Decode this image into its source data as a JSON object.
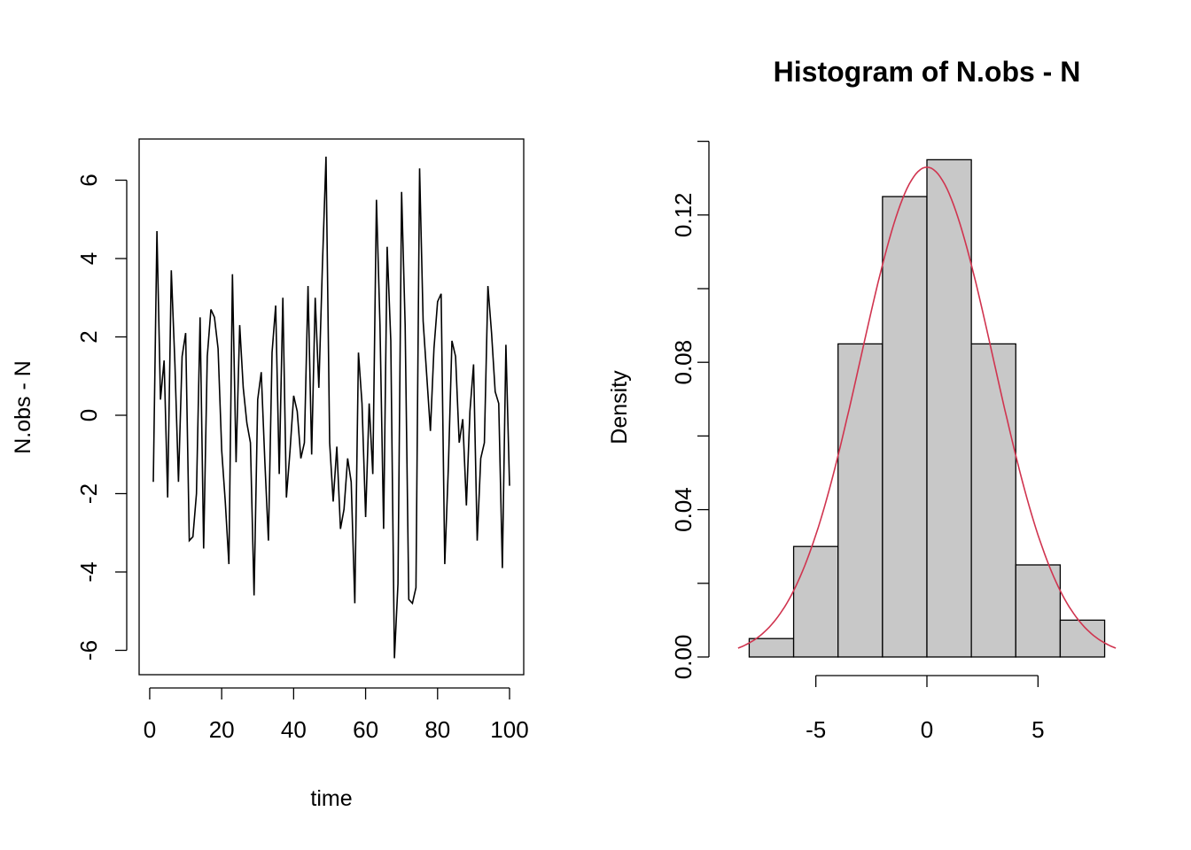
{
  "chart_data": [
    {
      "type": "line",
      "title": "",
      "xlabel": "time",
      "ylabel": "N.obs - N",
      "xlim": [
        1,
        100
      ],
      "ylim": [
        -6.2,
        6.6
      ],
      "xticks": [
        0,
        20,
        40,
        60,
        80,
        100
      ],
      "yticks": [
        -6,
        -4,
        -2,
        0,
        2,
        4,
        6
      ],
      "line_color": "#000000",
      "series": [
        {
          "x": [
            1,
            2,
            3,
            4,
            5,
            6,
            7,
            8,
            9,
            10,
            11,
            12,
            13,
            14,
            15,
            16,
            17,
            18,
            19,
            20,
            21,
            22,
            23,
            24,
            25,
            26,
            27,
            28,
            29,
            30,
            31,
            32,
            33,
            34,
            35,
            36,
            37,
            38,
            39,
            40,
            41,
            42,
            43,
            44,
            45,
            46,
            47,
            48,
            49,
            50,
            51,
            52,
            53,
            54,
            55,
            56,
            57,
            58,
            59,
            60,
            61,
            62,
            63,
            64,
            65,
            66,
            67,
            68,
            69,
            70,
            71,
            72,
            73,
            74,
            75,
            76,
            77,
            78,
            79,
            80,
            81,
            82,
            83,
            84,
            85,
            86,
            87,
            88,
            89,
            90,
            91,
            92,
            93,
            94,
            95,
            96,
            97,
            98,
            99,
            100
          ],
          "values": [
            -1.7,
            4.7,
            0.4,
            1.4,
            -2.1,
            3.7,
            1.3,
            -1.7,
            1.5,
            2.1,
            -3.2,
            -3.1,
            -2.0,
            2.5,
            -3.4,
            1.5,
            2.7,
            2.5,
            1.7,
            -0.9,
            -2.2,
            -3.8,
            3.6,
            -1.2,
            2.3,
            0.7,
            -0.2,
            -0.7,
            -4.6,
            0.4,
            1.1,
            -1.2,
            -3.2,
            1.6,
            2.8,
            -1.5,
            3.0,
            -2.1,
            -0.9,
            0.5,
            0.1,
            -1.1,
            -0.7,
            3.3,
            -1.0,
            3.0,
            0.7,
            3.8,
            6.6,
            -0.7,
            -2.2,
            -0.8,
            -2.9,
            -2.4,
            -1.1,
            -1.7,
            -4.8,
            1.6,
            0.3,
            -2.6,
            0.3,
            -1.5,
            5.5,
            2.3,
            -2.9,
            4.3,
            1.9,
            -6.2,
            -4.3,
            5.7,
            2.3,
            -4.7,
            -4.8,
            -4.4,
            6.3,
            2.4,
            1.0,
            -0.4,
            1.7,
            2.9,
            3.1,
            -3.8,
            -1.3,
            1.9,
            1.5,
            -0.7,
            -0.1,
            -2.3,
            0.1,
            1.3,
            -3.2,
            -1.1,
            -0.7,
            3.3,
            2.1,
            0.6,
            0.3,
            -3.9,
            1.8,
            -1.8
          ]
        }
      ]
    },
    {
      "type": "bar",
      "title": "Histogram of N.obs - N",
      "xlabel": "",
      "ylabel": "Density",
      "xlim": [
        -8.5,
        8.5
      ],
      "ylim": [
        0,
        0.14
      ],
      "xticks": [
        -5,
        0,
        5
      ],
      "yticks": [
        "0.00",
        "0.04",
        "0.08",
        "0.12"
      ],
      "yticks_minor": [
        0.02,
        0.06,
        0.1,
        0.14
      ],
      "bin_edges": [
        -8,
        -6,
        -4,
        -2,
        0,
        2,
        4,
        6,
        8
      ],
      "values": [
        0.005,
        0.03,
        0.085,
        0.125,
        0.135,
        0.085,
        0.025,
        0.01
      ],
      "bar_fill": "#c8c8c8",
      "bar_stroke": "#000000",
      "curve": {
        "type": "normal_density",
        "mean": 0,
        "sd": 3.0,
        "color": "#d0344f"
      }
    }
  ]
}
